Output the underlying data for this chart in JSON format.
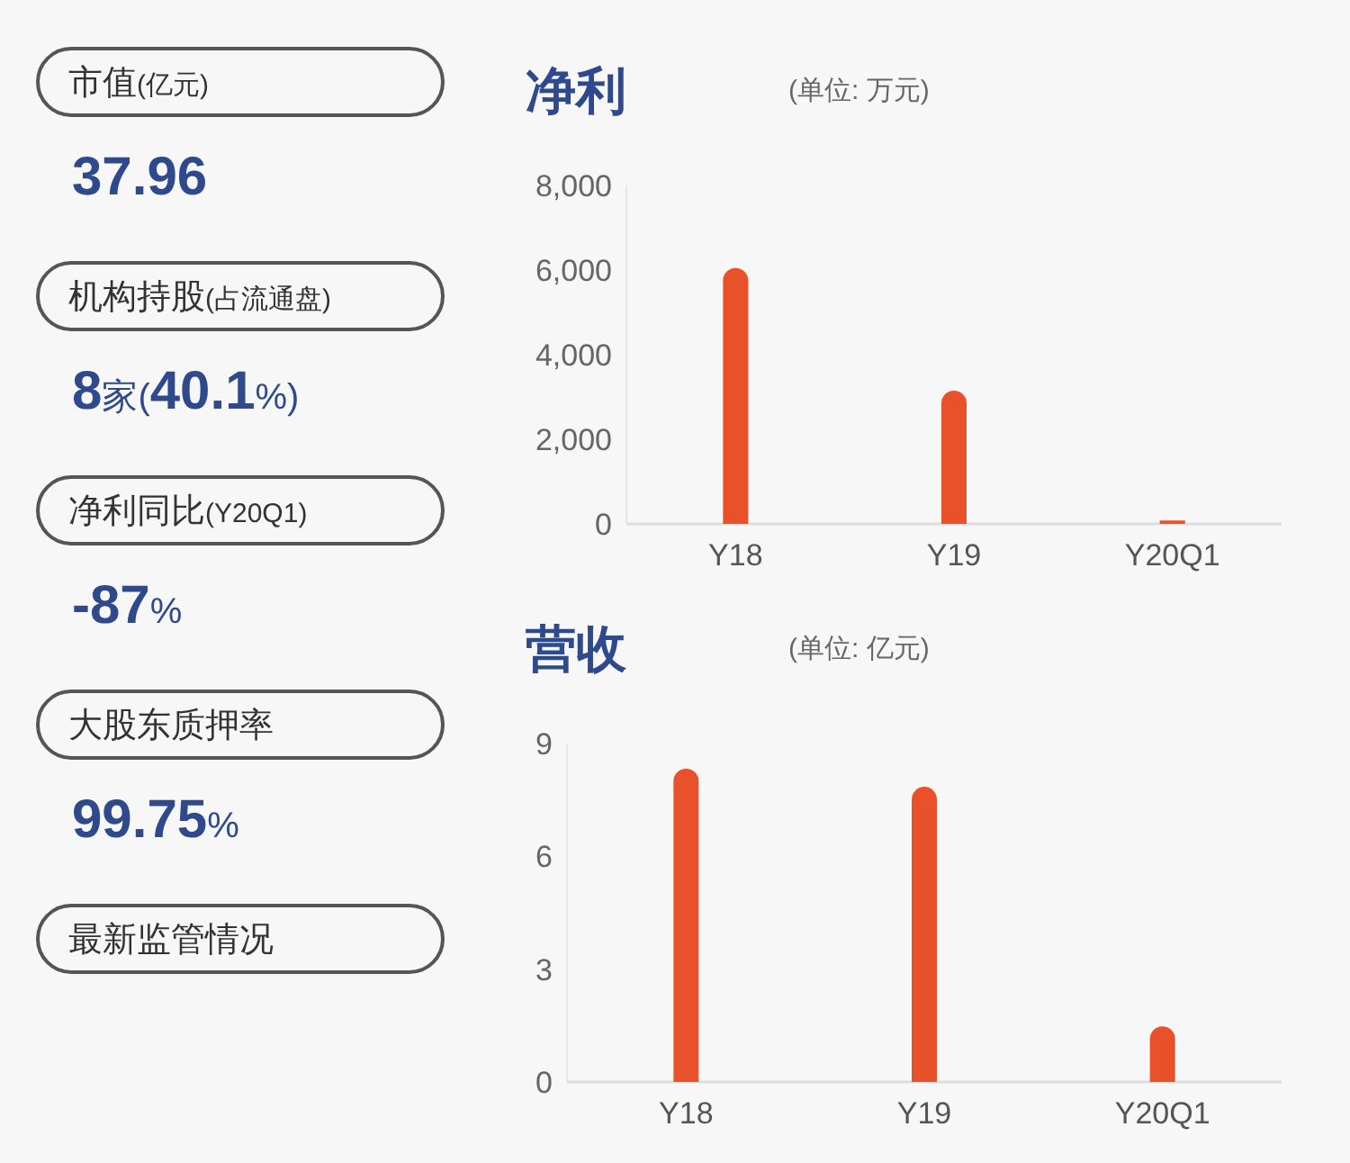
{
  "chart_data": [
    {
      "type": "other",
      "annotations": [
        "市值(亿元)",
        "37.96",
        "机构持股(占流通盘)",
        "8家(40.1%)",
        "净利同比(Y20Q1)",
        "-87%",
        "大股东质押率",
        "99.75%",
        "最新监管情况"
      ]
    },
    {
      "type": "bar",
      "title": "净利",
      "subtitle": "(单位: 万元)",
      "categories": [
        "Y18",
        "Y19",
        "Y20Q1"
      ],
      "series": [
        {
          "color": "#e8512a",
          "values": [
            6050,
            3150,
            80
          ]
        }
      ],
      "ylim": [
        0,
        8000
      ],
      "yticks": [
        {
          "value": 0,
          "label": "0"
        },
        {
          "value": 2000,
          "label": "2,000"
        },
        {
          "value": 4000,
          "label": "4,000"
        },
        {
          "value": 6000,
          "label": "6,000"
        },
        {
          "value": 8000,
          "label": "8,000"
        }
      ],
      "grid": false
    },
    {
      "type": "bar",
      "title": "营收",
      "subtitle": "(单位: 亿元)",
      "categories": [
        "Y18",
        "Y19",
        "Y20Q1"
      ],
      "series": [
        {
          "color": "#e8512a",
          "values": [
            8.33,
            7.85,
            1.48
          ]
        }
      ],
      "ylim": [
        0,
        9
      ],
      "yticks": [
        0,
        3,
        6,
        9
      ],
      "grid": false
    }
  ]
}
